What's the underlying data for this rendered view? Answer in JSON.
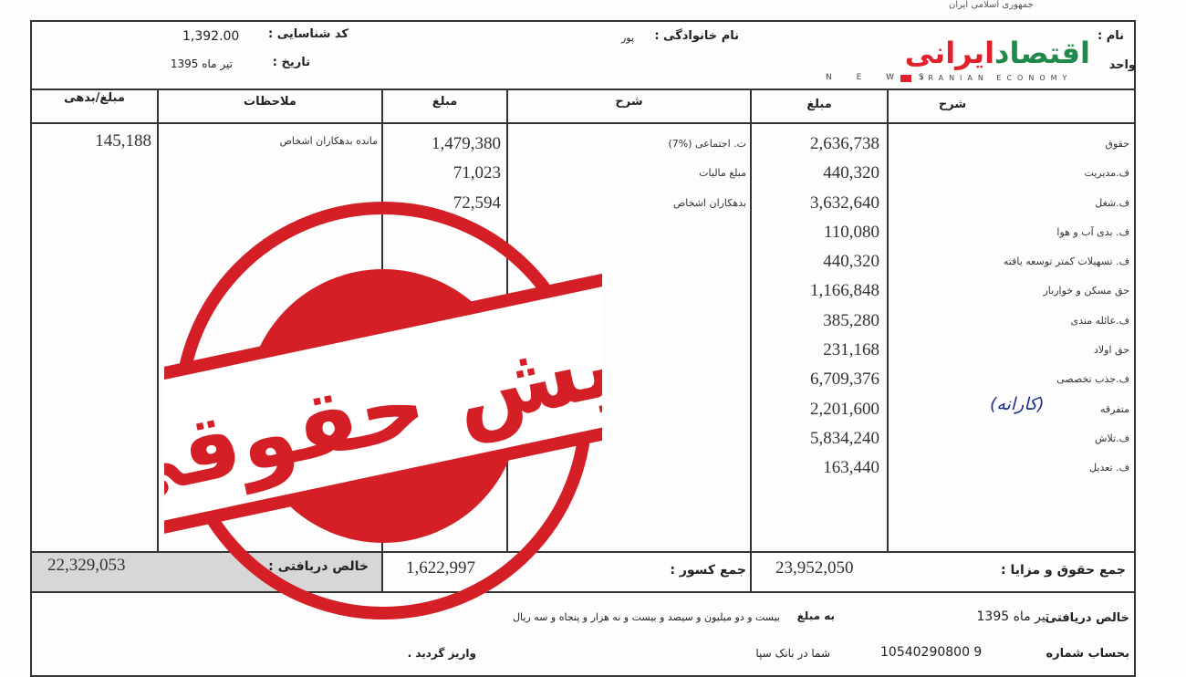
{
  "document": {
    "top_caption": "جمهوری اسلامی ایران",
    "header": {
      "name_label": "نام :",
      "family_label": "نام خانوادگی :",
      "family_value": "پور",
      "unit_label": "واحد",
      "id_code_label": "کد شناسایی :",
      "id_code_value": "1,392.00",
      "date_label": "تاریخ :",
      "date_value": "تیر ماه 1395"
    },
    "columns": {
      "earnings_desc": "شرح",
      "earnings_amount": "مبلغ",
      "deductions_desc": "شرح",
      "deductions_amount": "مبلغ",
      "notes": "ملاحظات",
      "debt_amount": "مبلغ/بدهی"
    },
    "earnings": [
      {
        "label": "حقوق",
        "amount": "2,636,738"
      },
      {
        "label": "ف.مدیریت",
        "amount": "440,320"
      },
      {
        "label": "ف.شغل",
        "amount": "3,632,640"
      },
      {
        "label": "ف. بدی آب و هوا",
        "amount": "110,080"
      },
      {
        "label": "ف. تسهیلات کمتر توسعه یافته",
        "amount": "440,320"
      },
      {
        "label": "حق مسکن و خواربار",
        "amount": "1,166,848"
      },
      {
        "label": "ف.عائله مندی",
        "amount": "385,280"
      },
      {
        "label": "حق اولاد",
        "amount": "231,168"
      },
      {
        "label": "ف.جذب تخصصی",
        "amount": "6,709,376"
      },
      {
        "label": "متفرقه",
        "amount": "2,201,600"
      },
      {
        "label": "ف.تلاش",
        "amount": "5,834,240"
      },
      {
        "label": "ف. تعدیل",
        "amount": "163,440"
      }
    ],
    "handwritten_note": "(کارانه)",
    "deductions": [
      {
        "label": "ت. اجتماعی (%7)",
        "amount": "1,479,380"
      },
      {
        "label": "مبلغ مالیات",
        "amount": "71,023"
      },
      {
        "label": "بدهکاران اشخاص",
        "amount": "72,594"
      }
    ],
    "notes": [
      {
        "note": "مانده بدهکاران اشخاص",
        "amount": "145,188"
      }
    ],
    "totals": {
      "earnings_label": "جمع حقوق و مزایا :",
      "earnings_value": "23,952,050",
      "deductions_label": "جمع کسور :",
      "deductions_value": "1,622,997",
      "net_label": "خالص دریافتی :",
      "net_value": "22,329,053"
    },
    "footer": {
      "line1_label": "خالص دریافتی",
      "line1_date": "تیر ماه 1395",
      "line1_amount_label": "به مبلغ",
      "line1_words": "بیست و دو میلیون و سیصد و بیست و نه هزار و پنجاه و سه ریال",
      "line2_label": "بحساب شماره",
      "line2_account": "10540290800 9",
      "line2_bank": "شما در بانک سپا",
      "line2_end": "واریز گردید ."
    }
  },
  "stamp": {
    "text": "فیش حقوقی",
    "color": "#d41f26"
  },
  "logo": {
    "text_fa": "اقتصادایرانی",
    "text_en_left": "N E W S",
    "text_en_right": "IRANIAN ECONOMY",
    "green": "#1f8a4c",
    "red": "#e0202a"
  }
}
